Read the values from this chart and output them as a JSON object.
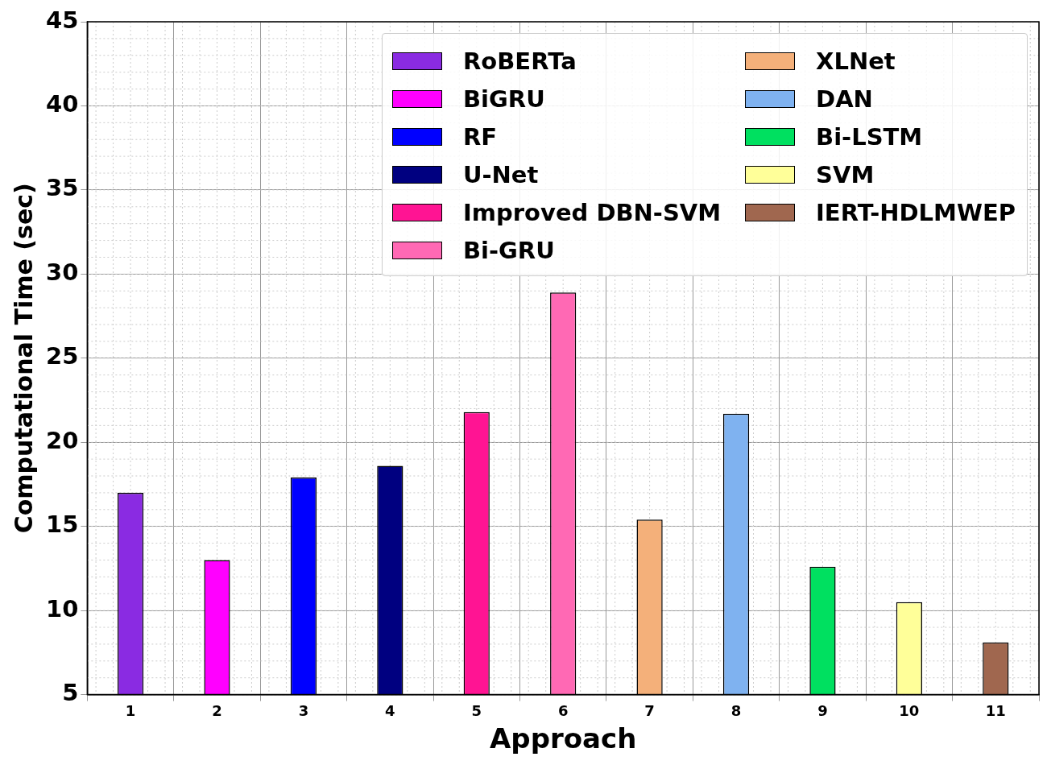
{
  "chart_data": {
    "type": "bar",
    "xlabel": "Approach",
    "ylabel": "Computational Time (sec)",
    "categories": [
      "1",
      "2",
      "3",
      "4",
      "5",
      "6",
      "7",
      "8",
      "9",
      "10",
      "11"
    ],
    "series": [
      {
        "name": "RoBERTa",
        "color": "#8a2be2",
        "values": [
          17.0,
          null,
          null,
          null,
          null,
          null,
          null,
          null,
          null,
          null,
          null
        ]
      },
      {
        "name": "BiGRU",
        "color": "#ff00ff",
        "values": [
          null,
          13.0,
          null,
          null,
          null,
          null,
          null,
          null,
          null,
          null,
          null
        ]
      },
      {
        "name": "RF",
        "color": "#0000ff",
        "values": [
          null,
          null,
          17.9,
          null,
          null,
          null,
          null,
          null,
          null,
          null,
          null
        ]
      },
      {
        "name": "U-Net",
        "color": "#000080",
        "values": [
          null,
          null,
          null,
          18.6,
          null,
          null,
          null,
          null,
          null,
          null,
          null
        ]
      },
      {
        "name": "Improved DBN-SVM",
        "color": "#ff1493",
        "values": [
          null,
          null,
          null,
          null,
          21.8,
          null,
          null,
          null,
          null,
          null,
          null
        ]
      },
      {
        "name": "Bi-GRU",
        "color": "#ff69b4",
        "values": [
          null,
          null,
          null,
          null,
          null,
          28.9,
          null,
          null,
          null,
          null,
          null
        ]
      },
      {
        "name": "XLNet",
        "color": "#f4b07a",
        "values": [
          null,
          null,
          null,
          null,
          null,
          null,
          15.4,
          null,
          null,
          null,
          null
        ]
      },
      {
        "name": "DAN",
        "color": "#7fb2f0",
        "values": [
          null,
          null,
          null,
          null,
          null,
          null,
          null,
          21.7,
          null,
          null,
          null
        ]
      },
      {
        "name": "Bi-LSTM",
        "color": "#00e060",
        "values": [
          null,
          null,
          null,
          null,
          null,
          null,
          null,
          null,
          12.6,
          null,
          null
        ]
      },
      {
        "name": "SVM",
        "color": "#ffff99",
        "values": [
          null,
          null,
          null,
          null,
          null,
          null,
          null,
          null,
          null,
          10.5,
          null
        ]
      },
      {
        "name": "IERT-HDLMWEP",
        "color": "#a0674f",
        "values": [
          null,
          null,
          null,
          null,
          null,
          null,
          null,
          null,
          null,
          null,
          8.1
        ]
      }
    ],
    "ylim": [
      5,
      45
    ],
    "yticks": [
      5,
      10,
      15,
      20,
      25,
      30,
      35,
      40,
      45
    ],
    "grid": true,
    "legend": "top right"
  }
}
